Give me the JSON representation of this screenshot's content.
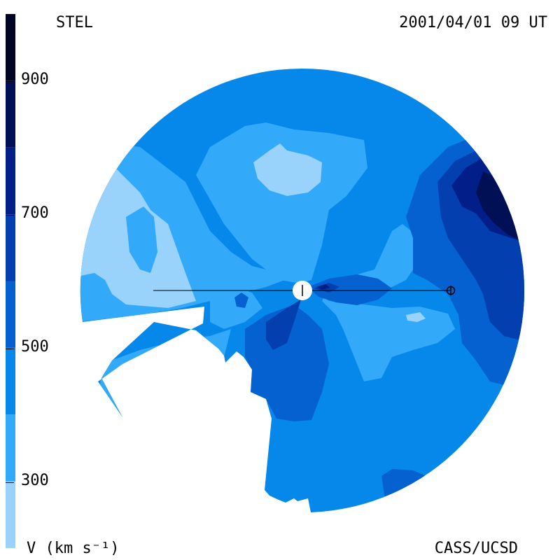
{
  "header": {
    "observatory": "STEL",
    "datetime": "2001/04/01 09 UT"
  },
  "footer": {
    "unit_label": "V (km s⁻¹)",
    "credit": "CASS/UCSD"
  },
  "colorbar": {
    "min": 200,
    "max": 1000,
    "tick_labels": [
      "900",
      "700",
      "500",
      "300"
    ],
    "tick_values": [
      900,
      700,
      500,
      300
    ],
    "bands": [
      {
        "from": 200,
        "to": 300,
        "color": "#99d3fb"
      },
      {
        "from": 300,
        "to": 400,
        "color": "#33a9fa"
      },
      {
        "from": 400,
        "to": 500,
        "color": "#0687ea"
      },
      {
        "from": 500,
        "to": 600,
        "color": "#0461cf"
      },
      {
        "from": 600,
        "to": 700,
        "color": "#033fae"
      },
      {
        "from": 700,
        "to": 800,
        "color": "#021f89"
      },
      {
        "from": 800,
        "to": 900,
        "color": "#010f55"
      },
      {
        "from": 900,
        "to": 1000,
        "color": "#000524"
      }
    ]
  },
  "map": {
    "sun_symbol": "sun-icon",
    "earth_symbol": "earth-icon"
  }
}
